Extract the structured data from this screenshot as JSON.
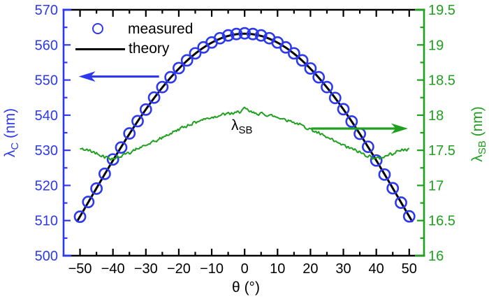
{
  "colors": {
    "blue": "#2c39ee",
    "green": "#1fa01f",
    "axis_black": "#000000",
    "background": "#ffffff"
  },
  "legend": {
    "items": [
      {
        "marker": "open-circle",
        "label": "measured"
      },
      {
        "marker": "solid-line",
        "label": "theory"
      }
    ]
  },
  "axes": {
    "x": {
      "symbol": "θ",
      "unit": " (°)",
      "range": [
        -55,
        54.5
      ],
      "major_ticks": [
        -50,
        -40,
        -30,
        -20,
        -10,
        0,
        10,
        20,
        30,
        40,
        50
      ],
      "minor_tick_step": 5
    },
    "y_left": {
      "symbol": "λ",
      "subscript": "C",
      "unit": " (nm)",
      "range": [
        500,
        570
      ],
      "major_ticks": [
        500,
        510,
        520,
        530,
        540,
        550,
        560,
        570
      ],
      "minor_tick_step": 5
    },
    "y_right": {
      "symbol": "λ",
      "subscript": "SB",
      "unit": " (nm)",
      "range": [
        16,
        19.5
      ],
      "major_ticks": [
        16,
        16.5,
        17,
        17.5,
        18,
        18.5,
        19,
        19.5
      ],
      "minor_tick_step": 0.25
    }
  },
  "annotations": {
    "sb_curve_label": {
      "symbol": "λ",
      "subscript": "SB"
    },
    "left_axis_arrow": {
      "points_to": "left-axis",
      "theta_from": -26,
      "theta_to": -50.4,
      "lambda_c": 551
    },
    "right_axis_arrow": {
      "points_to": "right-axis",
      "theta_from": 20.3,
      "theta_to": 49.6,
      "lambda_sb": 17.81
    }
  },
  "chart_data": {
    "type": "line",
    "title": "",
    "xlabel": "θ (°)",
    "ylabel_left": "λC (nm)",
    "ylabel_right": "λSB (nm)",
    "xlim": [
      -55,
      54.5
    ],
    "ylim_left": [
      500,
      570
    ],
    "ylim_right": [
      16,
      19.5
    ],
    "grid": false,
    "legend_position": "top-left-inside",
    "series": [
      {
        "name": "measured",
        "type": "scatter",
        "marker": "open-circle",
        "color_key": "blue",
        "axis": "left",
        "x": [
          -50,
          -47.5,
          -45,
          -42.5,
          -40,
          -37.5,
          -35,
          -32.5,
          -30,
          -27.5,
          -25,
          -22.5,
          -20,
          -17.5,
          -15,
          -12.5,
          -10,
          -7.5,
          -5,
          -2.5,
          0,
          2.5,
          5,
          7.5,
          10,
          12.5,
          15,
          17.5,
          20,
          22.5,
          25,
          27.5,
          30,
          32.5,
          35,
          37.5,
          40,
          42.5,
          45,
          47.5,
          50
        ],
        "y": [
          511.1,
          515.3,
          519.1,
          523.3,
          527.4,
          530.8,
          534.8,
          538.3,
          541.6,
          545.0,
          548.0,
          550.8,
          553.4,
          555.6,
          557.6,
          559.3,
          560.7,
          561.9,
          562.7,
          563.1,
          563.3,
          563.1,
          562.7,
          561.9,
          560.7,
          559.3,
          557.6,
          555.6,
          553.3,
          550.8,
          548.0,
          544.9,
          541.7,
          538.2,
          534.7,
          531.0,
          527.1,
          523.1,
          519.2,
          515.1,
          511.2
        ]
      },
      {
        "name": "theory",
        "type": "line",
        "color_key": "axis_black",
        "axis": "left",
        "model": "lambda_c(theta) = lambda0 * sqrt(1 - (sin(theta)/n_eff)^2)",
        "lambda0": 563.2,
        "n_eff": 1.825,
        "theta_range": [
          -51,
          51
        ],
        "x_sampled": [
          -50,
          -45,
          -40,
          -35,
          -30,
          -25,
          -20,
          -15,
          -10,
          -5,
          0,
          5,
          10,
          15,
          20,
          25,
          30,
          35,
          40,
          45,
          50
        ],
        "y_sampled": [
          511.2,
          519.2,
          527.1,
          534.7,
          541.7,
          547.9,
          553.2,
          557.5,
          560.6,
          562.6,
          563.2,
          562.6,
          560.6,
          557.5,
          553.2,
          547.9,
          541.7,
          534.7,
          527.1,
          519.2,
          511.2
        ]
      },
      {
        "name": "λ_SB",
        "type": "line",
        "color_key": "green",
        "axis": "right",
        "noise_amplitude": 0.028,
        "x": [
          -50,
          -47.5,
          -45,
          -42.5,
          -40,
          -37.5,
          -35,
          -32.5,
          -30,
          -27.5,
          -25,
          -22.5,
          -20,
          -17.5,
          -15,
          -12.5,
          -10,
          -7.5,
          -5,
          -2.5,
          0,
          2.5,
          5,
          7.5,
          10,
          12.5,
          15,
          17.5,
          20,
          22.5,
          25,
          27.5,
          30,
          32.5,
          35,
          37.5,
          40,
          42.5,
          45,
          47.5,
          50
        ],
        "y": [
          17.52,
          17.5,
          17.46,
          17.41,
          17.38,
          17.42,
          17.47,
          17.52,
          17.57,
          17.62,
          17.68,
          17.74,
          17.8,
          17.85,
          17.9,
          17.94,
          17.97,
          18.0,
          18.02,
          18.03,
          18.09,
          18.03,
          18.02,
          18.0,
          17.97,
          17.94,
          17.9,
          17.85,
          17.8,
          17.74,
          17.68,
          17.62,
          17.57,
          17.52,
          17.47,
          17.42,
          17.38,
          17.41,
          17.46,
          17.5,
          17.52
        ]
      }
    ]
  }
}
